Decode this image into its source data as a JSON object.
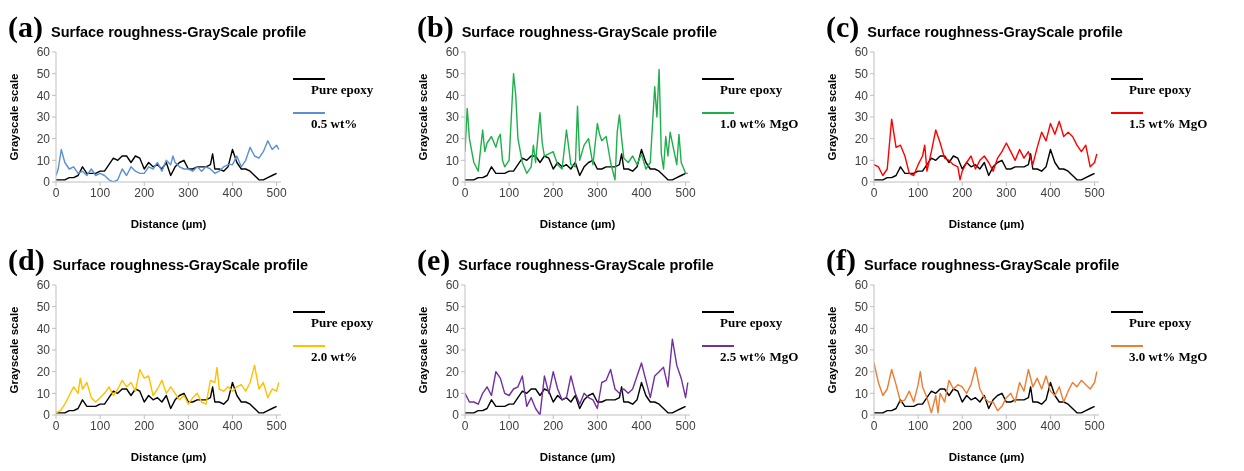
{
  "chart_data": [
    {
      "type": "line",
      "title": "Surface roughness-GrayScale profile",
      "annotations": [
        "(a)"
      ],
      "xlabel": "Distance (µm)",
      "ylabel": "Grayscale scale",
      "xlim": [
        0,
        510
      ],
      "xticks": [
        0,
        100,
        200,
        300,
        400,
        500
      ],
      "ylim": [
        0,
        60
      ],
      "yticks": [
        0,
        10,
        20,
        30,
        40,
        50,
        60
      ],
      "legend": "right",
      "series": [
        {
          "name": "Pure epoxy",
          "color": "#000000",
          "x": [
            0,
            10,
            20,
            30,
            40,
            50,
            60,
            70,
            80,
            90,
            100,
            110,
            120,
            130,
            140,
            150,
            160,
            170,
            180,
            190,
            200,
            210,
            220,
            230,
            240,
            250,
            260,
            270,
            280,
            290,
            300,
            310,
            320,
            330,
            340,
            350,
            355,
            360,
            370,
            380,
            390,
            400,
            410,
            420,
            430,
            440,
            450,
            460,
            470,
            480,
            490,
            500
          ],
          "values": [
            1,
            1,
            1,
            2,
            2,
            3,
            7,
            4,
            4,
            4,
            5,
            5,
            8,
            11,
            10,
            12,
            12,
            9,
            12,
            11,
            6,
            9,
            7,
            8,
            6,
            9,
            3,
            7,
            9,
            10,
            6,
            6,
            7,
            7,
            7,
            8,
            13,
            6,
            6,
            5,
            7,
            15,
            9,
            6,
            6,
            5,
            3,
            1,
            1,
            2,
            3,
            4
          ]
        },
        {
          "name": "0.5 wt%",
          "color": "#5b8fd6",
          "x": [
            0,
            5,
            12,
            20,
            30,
            40,
            50,
            60,
            70,
            80,
            90,
            100,
            110,
            120,
            130,
            140,
            150,
            160,
            170,
            180,
            190,
            200,
            210,
            220,
            230,
            240,
            250,
            260,
            265,
            270,
            280,
            290,
            300,
            310,
            320,
            330,
            340,
            350,
            360,
            370,
            380,
            390,
            400,
            410,
            420,
            430,
            440,
            450,
            460,
            470,
            480,
            490,
            500,
            505
          ],
          "values": [
            3,
            6,
            15,
            9,
            6,
            7,
            4,
            5,
            3,
            6,
            3,
            4,
            3,
            1,
            0,
            1,
            6,
            3,
            7,
            5,
            4,
            4,
            7,
            6,
            9,
            5,
            10,
            8,
            12,
            9,
            7,
            6,
            6,
            5,
            7,
            5,
            7,
            6,
            4,
            5,
            7,
            8,
            8,
            12,
            7,
            10,
            16,
            12,
            11,
            14,
            19,
            15,
            17,
            15
          ]
        }
      ]
    },
    {
      "type": "line",
      "title": "Surface roughness-GrayScale profile",
      "annotations": [
        "(b)"
      ],
      "xlabel": "Distance (µm)",
      "ylabel": "Grayscale scale",
      "xlim": [
        0,
        510
      ],
      "xticks": [
        0,
        100,
        200,
        300,
        400,
        500
      ],
      "ylim": [
        0,
        60
      ],
      "yticks": [
        0,
        10,
        20,
        30,
        40,
        50,
        60
      ],
      "legend": "right",
      "series": [
        {
          "name": "Pure epoxy",
          "color": "#000000",
          "x": [
            0,
            10,
            20,
            30,
            40,
            50,
            60,
            70,
            80,
            90,
            100,
            110,
            120,
            130,
            140,
            150,
            160,
            170,
            180,
            190,
            200,
            210,
            220,
            230,
            240,
            250,
            260,
            270,
            280,
            290,
            300,
            310,
            320,
            330,
            340,
            350,
            355,
            360,
            370,
            380,
            390,
            400,
            410,
            420,
            430,
            440,
            450,
            460,
            470,
            480,
            490,
            500
          ],
          "values": [
            1,
            1,
            1,
            2,
            2,
            3,
            7,
            4,
            4,
            4,
            5,
            5,
            8,
            11,
            10,
            12,
            12,
            9,
            12,
            11,
            6,
            9,
            7,
            8,
            6,
            9,
            3,
            7,
            9,
            10,
            6,
            6,
            7,
            7,
            7,
            8,
            13,
            6,
            6,
            5,
            7,
            15,
            9,
            6,
            6,
            5,
            3,
            1,
            1,
            2,
            3,
            4
          ]
        },
        {
          "name": "1.0 wt% MgO",
          "color": "#1fb04c",
          "x": [
            0,
            5,
            10,
            20,
            30,
            40,
            45,
            50,
            60,
            70,
            75,
            80,
            85,
            90,
            100,
            110,
            115,
            120,
            130,
            140,
            150,
            155,
            160,
            170,
            175,
            180,
            190,
            200,
            210,
            220,
            230,
            240,
            250,
            255,
            260,
            270,
            280,
            290,
            300,
            305,
            310,
            320,
            330,
            340,
            345,
            350,
            355,
            360,
            370,
            380,
            390,
            400,
            410,
            420,
            430,
            435,
            440,
            445,
            450,
            455,
            460,
            465,
            470,
            480,
            485,
            490,
            500,
            505
          ],
          "values": [
            14,
            34,
            20,
            9,
            5,
            24,
            14,
            18,
            21,
            16,
            20,
            22,
            10,
            7,
            10,
            50,
            40,
            20,
            9,
            4,
            7,
            17,
            9,
            32,
            18,
            12,
            13,
            14,
            8,
            6,
            24,
            8,
            7,
            35,
            10,
            17,
            20,
            8,
            27,
            22,
            19,
            21,
            9,
            1,
            23,
            31,
            20,
            11,
            9,
            12,
            8,
            13,
            6,
            9,
            44,
            30,
            52,
            13,
            6,
            21,
            12,
            23,
            18,
            8,
            22,
            9,
            4,
            4
          ]
        }
      ]
    },
    {
      "type": "line",
      "title": "Surface roughness-GrayScale profile",
      "annotations": [
        "(c)"
      ],
      "xlabel": "Distance (µm)",
      "ylabel": "Grayscale scale",
      "xlim": [
        0,
        510
      ],
      "xticks": [
        0,
        100,
        200,
        300,
        400,
        500
      ],
      "ylim": [
        0,
        60
      ],
      "yticks": [
        0,
        10,
        20,
        30,
        40,
        50,
        60
      ],
      "legend": "right",
      "series": [
        {
          "name": "Pure epoxy",
          "color": "#000000",
          "x": [
            0,
            10,
            20,
            30,
            40,
            50,
            60,
            70,
            80,
            90,
            100,
            110,
            120,
            130,
            140,
            150,
            160,
            170,
            180,
            190,
            200,
            210,
            220,
            230,
            240,
            250,
            260,
            270,
            280,
            290,
            300,
            310,
            320,
            330,
            340,
            350,
            355,
            360,
            370,
            380,
            390,
            400,
            410,
            420,
            430,
            440,
            450,
            460,
            470,
            480,
            490,
            500
          ],
          "values": [
            1,
            1,
            1,
            2,
            2,
            3,
            7,
            4,
            4,
            4,
            5,
            5,
            8,
            11,
            10,
            12,
            12,
            9,
            12,
            11,
            6,
            9,
            7,
            8,
            6,
            9,
            3,
            7,
            9,
            10,
            6,
            6,
            7,
            7,
            7,
            8,
            13,
            6,
            6,
            5,
            7,
            15,
            9,
            6,
            6,
            5,
            3,
            1,
            1,
            2,
            3,
            4
          ]
        },
        {
          "name": "1.5 wt% MgO",
          "color": "#ff0000",
          "x": [
            0,
            10,
            20,
            30,
            40,
            50,
            60,
            70,
            80,
            90,
            100,
            110,
            115,
            120,
            130,
            140,
            150,
            160,
            170,
            180,
            190,
            195,
            200,
            210,
            220,
            230,
            240,
            250,
            260,
            270,
            280,
            290,
            300,
            310,
            320,
            330,
            340,
            350,
            360,
            370,
            380,
            390,
            400,
            410,
            420,
            430,
            440,
            450,
            460,
            470,
            480,
            490,
            500,
            505
          ],
          "values": [
            8,
            7,
            3,
            6,
            29,
            16,
            17,
            12,
            4,
            3,
            8,
            12,
            17,
            5,
            14,
            24,
            18,
            11,
            10,
            8,
            7,
            1,
            5,
            9,
            12,
            6,
            10,
            12,
            9,
            5,
            11,
            14,
            18,
            14,
            10,
            15,
            11,
            14,
            8,
            16,
            23,
            19,
            27,
            22,
            28,
            21,
            23,
            21,
            17,
            14,
            17,
            7,
            9,
            13
          ]
        }
      ]
    },
    {
      "type": "line",
      "title": "Surface roughness-GrayScale profile",
      "annotations": [
        "(d)"
      ],
      "xlabel": "Distance (µm)",
      "ylabel": "Grayscale scale",
      "xlim": [
        0,
        510
      ],
      "xticks": [
        0,
        100,
        200,
        300,
        400,
        500
      ],
      "ylim": [
        0,
        60
      ],
      "yticks": [
        0,
        10,
        20,
        30,
        40,
        50,
        60
      ],
      "legend": "right",
      "series": [
        {
          "name": "Pure epoxy",
          "color": "#000000",
          "x": [
            0,
            10,
            20,
            30,
            40,
            50,
            60,
            70,
            80,
            90,
            100,
            110,
            120,
            130,
            140,
            150,
            160,
            170,
            180,
            190,
            200,
            210,
            220,
            230,
            240,
            250,
            260,
            270,
            280,
            290,
            300,
            310,
            320,
            330,
            340,
            350,
            355,
            360,
            370,
            380,
            390,
            400,
            410,
            420,
            430,
            440,
            450,
            460,
            470,
            480,
            490,
            500
          ],
          "values": [
            1,
            1,
            1,
            2,
            2,
            3,
            7,
            4,
            4,
            4,
            5,
            5,
            8,
            11,
            10,
            12,
            12,
            9,
            12,
            11,
            6,
            9,
            7,
            8,
            6,
            9,
            3,
            7,
            9,
            10,
            6,
            6,
            7,
            7,
            7,
            8,
            13,
            6,
            6,
            5,
            7,
            15,
            9,
            6,
            6,
            5,
            3,
            1,
            1,
            2,
            3,
            4
          ]
        },
        {
          "name": "2.0 wt%",
          "color": "#ffc000",
          "x": [
            0,
            10,
            20,
            30,
            40,
            50,
            55,
            60,
            70,
            80,
            90,
            100,
            110,
            120,
            130,
            140,
            150,
            160,
            170,
            180,
            190,
            200,
            210,
            220,
            230,
            240,
            250,
            260,
            270,
            280,
            290,
            300,
            310,
            320,
            330,
            340,
            350,
            360,
            365,
            370,
            380,
            390,
            400,
            410,
            420,
            430,
            440,
            450,
            460,
            470,
            480,
            490,
            500,
            505
          ],
          "values": [
            1,
            2,
            5,
            9,
            13,
            10,
            17,
            12,
            15,
            8,
            6,
            8,
            10,
            13,
            9,
            12,
            16,
            13,
            15,
            11,
            21,
            17,
            18,
            9,
            12,
            16,
            10,
            13,
            10,
            7,
            9,
            5,
            8,
            10,
            6,
            5,
            16,
            15,
            22,
            12,
            11,
            13,
            11,
            13,
            14,
            11,
            15,
            23,
            12,
            15,
            8,
            12,
            11,
            15
          ]
        }
      ]
    },
    {
      "type": "line",
      "title": "Surface roughness-GrayScale profile",
      "annotations": [
        "(e)"
      ],
      "xlabel": "Distance (µm)",
      "ylabel": "Grayscale scale",
      "xlim": [
        0,
        510
      ],
      "xticks": [
        0,
        100,
        200,
        300,
        400,
        500
      ],
      "ylim": [
        0,
        60
      ],
      "yticks": [
        0,
        10,
        20,
        30,
        40,
        50,
        60
      ],
      "legend": "right",
      "series": [
        {
          "name": "Pure epoxy",
          "color": "#000000",
          "x": [
            0,
            10,
            20,
            30,
            40,
            50,
            60,
            70,
            80,
            90,
            100,
            110,
            120,
            130,
            140,
            150,
            160,
            170,
            180,
            190,
            200,
            210,
            220,
            230,
            240,
            250,
            260,
            270,
            280,
            290,
            300,
            310,
            320,
            330,
            340,
            350,
            355,
            360,
            370,
            380,
            390,
            400,
            410,
            420,
            430,
            440,
            450,
            460,
            470,
            480,
            490,
            500
          ],
          "values": [
            1,
            1,
            1,
            2,
            2,
            3,
            7,
            4,
            4,
            4,
            5,
            5,
            8,
            11,
            10,
            12,
            12,
            9,
            12,
            11,
            6,
            9,
            7,
            8,
            6,
            9,
            3,
            7,
            9,
            10,
            6,
            6,
            7,
            7,
            7,
            8,
            13,
            6,
            6,
            5,
            7,
            15,
            9,
            6,
            6,
            5,
            3,
            1,
            1,
            2,
            3,
            4
          ]
        },
        {
          "name": "2.5 wt% MgO",
          "color": "#7030a0",
          "x": [
            0,
            10,
            20,
            30,
            40,
            50,
            60,
            70,
            80,
            90,
            100,
            110,
            120,
            130,
            140,
            150,
            160,
            170,
            180,
            190,
            200,
            210,
            220,
            230,
            240,
            250,
            260,
            270,
            280,
            290,
            300,
            310,
            320,
            330,
            340,
            350,
            360,
            370,
            380,
            390,
            400,
            410,
            420,
            430,
            440,
            450,
            460,
            470,
            480,
            490,
            500,
            505
          ],
          "values": [
            10,
            6,
            6,
            5,
            10,
            13,
            9,
            20,
            17,
            10,
            9,
            12,
            13,
            18,
            4,
            8,
            3,
            0,
            18,
            10,
            20,
            12,
            7,
            8,
            18,
            10,
            5,
            10,
            8,
            7,
            3,
            15,
            16,
            21,
            12,
            10,
            12,
            10,
            12,
            18,
            24,
            16,
            8,
            18,
            20,
            22,
            13,
            35,
            23,
            17,
            8,
            15
          ]
        }
      ]
    },
    {
      "type": "line",
      "title": "Surface roughness-GrayScale profile",
      "annotations": [
        "(f)"
      ],
      "xlabel": "Distance (µm)",
      "ylabel": "Grayscale scale",
      "xlim": [
        0,
        510
      ],
      "xticks": [
        0,
        100,
        200,
        300,
        400,
        500
      ],
      "ylim": [
        0,
        60
      ],
      "yticks": [
        0,
        10,
        20,
        30,
        40,
        50,
        60
      ],
      "legend": "right",
      "series": [
        {
          "name": "Pure epoxy",
          "color": "#000000",
          "x": [
            0,
            10,
            20,
            30,
            40,
            50,
            60,
            70,
            80,
            90,
            100,
            110,
            120,
            130,
            140,
            150,
            160,
            170,
            180,
            190,
            200,
            210,
            220,
            230,
            240,
            250,
            260,
            270,
            280,
            290,
            300,
            310,
            320,
            330,
            340,
            350,
            355,
            360,
            370,
            380,
            390,
            400,
            410,
            420,
            430,
            440,
            450,
            460,
            470,
            480,
            490,
            500
          ],
          "values": [
            1,
            1,
            1,
            2,
            2,
            3,
            7,
            4,
            4,
            4,
            5,
            5,
            8,
            11,
            10,
            12,
            12,
            9,
            12,
            11,
            6,
            9,
            7,
            8,
            6,
            9,
            3,
            7,
            9,
            10,
            6,
            6,
            7,
            7,
            7,
            8,
            13,
            6,
            6,
            5,
            7,
            15,
            9,
            6,
            6,
            5,
            3,
            1,
            1,
            2,
            3,
            4
          ]
        },
        {
          "name": "3.0 wt% MgO",
          "color": "#ed7d31",
          "x": [
            0,
            10,
            20,
            30,
            40,
            50,
            60,
            70,
            80,
            90,
            100,
            105,
            110,
            120,
            130,
            140,
            145,
            150,
            160,
            170,
            180,
            190,
            200,
            210,
            220,
            230,
            240,
            250,
            260,
            270,
            280,
            290,
            300,
            310,
            320,
            330,
            340,
            350,
            360,
            370,
            380,
            390,
            400,
            410,
            420,
            430,
            440,
            450,
            460,
            470,
            480,
            490,
            500,
            505
          ],
          "values": [
            24,
            15,
            9,
            12,
            21,
            14,
            6,
            7,
            11,
            6,
            14,
            20,
            13,
            8,
            1,
            9,
            1,
            10,
            6,
            16,
            12,
            14,
            13,
            10,
            14,
            22,
            12,
            8,
            6,
            6,
            2,
            4,
            8,
            10,
            6,
            15,
            11,
            21,
            13,
            17,
            12,
            18,
            11,
            9,
            13,
            6,
            11,
            15,
            13,
            16,
            14,
            12,
            15,
            20
          ]
        }
      ]
    }
  ]
}
